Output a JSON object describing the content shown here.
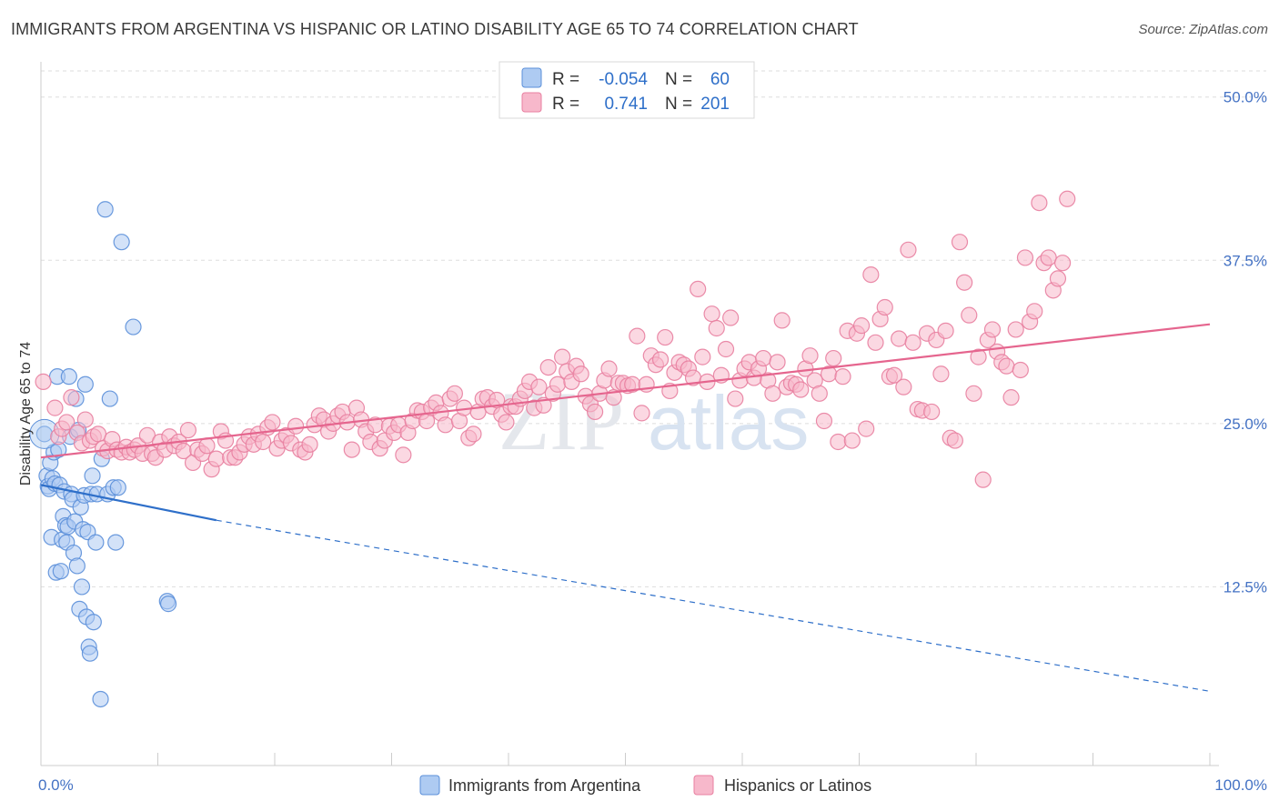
{
  "title": "IMMIGRANTS FROM ARGENTINA VS HISPANIC OR LATINO DISABILITY AGE 65 TO 74 CORRELATION CHART",
  "source": "Source: ZipAtlas.com",
  "watermark": {
    "zip": "ZIP",
    "atlas": "atlas"
  },
  "legend_top": [
    {
      "r_label": "R =",
      "r_value": "-0.054",
      "n_label": "N =",
      "n_value": "60",
      "swatch_fill": "#aecbf2",
      "swatch_stroke": "#5b8fd9"
    },
    {
      "r_label": "R =",
      "r_value": "0.741",
      "n_label": "N =",
      "n_value": "201",
      "swatch_fill": "#f7b8cb",
      "swatch_stroke": "#e87fa0"
    }
  ],
  "chart_data": {
    "type": "scatter",
    "title": "IMMIGRANTS FROM ARGENTINA VS HISPANIC OR LATINO DISABILITY AGE 65 TO 74 CORRELATION CHART",
    "xlabel": "",
    "ylabel": "Disability Age 65 to 74",
    "xlim": [
      0,
      100
    ],
    "ylim": [
      0,
      52
    ],
    "x_tick_labels": [
      "0.0%",
      "100.0%"
    ],
    "y_ticks": [
      {
        "value": 12.5,
        "label": "12.5%"
      },
      {
        "value": 25.0,
        "label": "25.0%"
      },
      {
        "value": 37.5,
        "label": "37.5%"
      },
      {
        "value": 50.0,
        "label": "50.0%"
      }
    ],
    "grid": true,
    "legend_position": "top-center",
    "series": [
      {
        "name": "Immigrants from Argentina",
        "color": "#5b8fd9",
        "fill": "#aecbf2",
        "trend": {
          "x0": 0,
          "y0": 20.3,
          "x1": 15,
          "y1": 17.6,
          "dashed_to_x": 100,
          "dashed_to_y": 4.5,
          "color": "#2e6fc9"
        },
        "points": [
          [
            0.3,
            24.2
          ],
          [
            0.5,
            21.0
          ],
          [
            0.6,
            20.2
          ],
          [
            0.7,
            20.0
          ],
          [
            0.8,
            22.0
          ],
          [
            0.9,
            16.3
          ],
          [
            1.0,
            20.8
          ],
          [
            1.1,
            22.8
          ],
          [
            1.2,
            20.4
          ],
          [
            1.3,
            13.6
          ],
          [
            1.4,
            28.6
          ],
          [
            1.5,
            23.0
          ],
          [
            1.6,
            20.3
          ],
          [
            1.7,
            13.7
          ],
          [
            1.8,
            16.1
          ],
          [
            1.9,
            17.9
          ],
          [
            2.0,
            19.8
          ],
          [
            2.1,
            17.2
          ],
          [
            2.2,
            15.9
          ],
          [
            2.3,
            17.1
          ],
          [
            2.4,
            28.6
          ],
          [
            2.5,
            24.0
          ],
          [
            2.6,
            19.6
          ],
          [
            2.7,
            19.2
          ],
          [
            2.8,
            15.1
          ],
          [
            2.9,
            17.5
          ],
          [
            3.0,
            26.9
          ],
          [
            3.1,
            14.1
          ],
          [
            3.2,
            24.5
          ],
          [
            3.3,
            10.8
          ],
          [
            3.4,
            18.6
          ],
          [
            3.5,
            12.5
          ],
          [
            3.6,
            16.9
          ],
          [
            3.7,
            19.5
          ],
          [
            3.8,
            28.0
          ],
          [
            3.9,
            10.2
          ],
          [
            4.0,
            16.7
          ],
          [
            4.1,
            7.9
          ],
          [
            4.2,
            7.4
          ],
          [
            4.3,
            19.6
          ],
          [
            4.4,
            21.0
          ],
          [
            4.5,
            9.8
          ],
          [
            4.7,
            15.9
          ],
          [
            4.8,
            19.6
          ],
          [
            5.1,
            3.9
          ],
          [
            5.2,
            22.3
          ],
          [
            5.5,
            41.4
          ],
          [
            5.7,
            19.6
          ],
          [
            5.9,
            26.9
          ],
          [
            6.2,
            20.1
          ],
          [
            6.4,
            15.9
          ],
          [
            6.6,
            20.1
          ],
          [
            6.9,
            38.9
          ],
          [
            7.9,
            32.4
          ],
          [
            10.8,
            11.4
          ],
          [
            10.9,
            11.2
          ]
        ]
      },
      {
        "name": "Hispanics or Latinos",
        "color": "#e87fa0",
        "fill": "#f7b8cb",
        "trend": {
          "x0": 0,
          "y0": 22.4,
          "x1": 100,
          "y1": 32.6,
          "color": "#e5658e"
        },
        "points": [
          [
            0.2,
            28.2
          ],
          [
            1.2,
            26.2
          ],
          [
            1.5,
            24.0
          ],
          [
            1.8,
            24.6
          ],
          [
            2.2,
            25.1
          ],
          [
            2.6,
            27.0
          ],
          [
            3.1,
            24.3
          ],
          [
            3.5,
            23.5
          ],
          [
            3.8,
            25.3
          ],
          [
            4.2,
            23.7
          ],
          [
            4.5,
            24.0
          ],
          [
            4.9,
            24.2
          ],
          [
            5.3,
            23.1
          ],
          [
            5.7,
            22.9
          ],
          [
            6.1,
            23.8
          ],
          [
            6.5,
            23.0
          ],
          [
            6.9,
            22.8
          ],
          [
            7.3,
            23.2
          ],
          [
            7.6,
            22.8
          ],
          [
            8.0,
            23.0
          ],
          [
            8.3,
            23.3
          ],
          [
            8.7,
            22.7
          ],
          [
            9.1,
            24.1
          ],
          [
            9.5,
            22.7
          ],
          [
            9.8,
            22.4
          ],
          [
            10.2,
            23.6
          ],
          [
            10.6,
            23.0
          ],
          [
            11.0,
            24.0
          ],
          [
            11.4,
            23.3
          ],
          [
            11.8,
            23.6
          ],
          [
            12.2,
            22.9
          ],
          [
            12.6,
            24.5
          ],
          [
            13.0,
            22.0
          ],
          [
            13.4,
            23.0
          ],
          [
            13.8,
            22.7
          ],
          [
            14.2,
            23.3
          ],
          [
            14.6,
            21.5
          ],
          [
            15.0,
            22.3
          ],
          [
            15.4,
            24.4
          ],
          [
            15.8,
            23.7
          ],
          [
            16.2,
            22.4
          ],
          [
            16.6,
            22.4
          ],
          [
            17.0,
            22.8
          ],
          [
            17.4,
            23.4
          ],
          [
            17.8,
            24.0
          ],
          [
            18.2,
            23.4
          ],
          [
            18.6,
            24.2
          ],
          [
            19.0,
            23.6
          ],
          [
            19.4,
            24.7
          ],
          [
            19.8,
            25.1
          ],
          [
            20.2,
            23.1
          ],
          [
            20.6,
            23.7
          ],
          [
            21.0,
            24.1
          ],
          [
            21.4,
            23.5
          ],
          [
            21.8,
            24.8
          ],
          [
            22.2,
            23.0
          ],
          [
            22.6,
            22.8
          ],
          [
            23.0,
            23.4
          ],
          [
            23.4,
            24.9
          ],
          [
            23.8,
            25.6
          ],
          [
            24.2,
            25.3
          ],
          [
            24.6,
            24.4
          ],
          [
            25.0,
            25.0
          ],
          [
            25.4,
            25.6
          ],
          [
            25.8,
            25.9
          ],
          [
            26.2,
            25.1
          ],
          [
            26.6,
            23.0
          ],
          [
            27.0,
            26.2
          ],
          [
            27.4,
            25.3
          ],
          [
            27.8,
            24.4
          ],
          [
            28.2,
            23.6
          ],
          [
            28.6,
            24.9
          ],
          [
            29.0,
            23.1
          ],
          [
            29.4,
            23.7
          ],
          [
            29.8,
            24.8
          ],
          [
            30.2,
            24.3
          ],
          [
            30.6,
            24.9
          ],
          [
            31.0,
            22.6
          ],
          [
            31.4,
            24.3
          ],
          [
            31.8,
            25.2
          ],
          [
            32.2,
            26.0
          ],
          [
            32.6,
            25.9
          ],
          [
            33.0,
            25.2
          ],
          [
            33.4,
            26.2
          ],
          [
            33.8,
            26.6
          ],
          [
            34.2,
            25.8
          ],
          [
            34.6,
            24.9
          ],
          [
            35.0,
            26.9
          ],
          [
            35.4,
            27.3
          ],
          [
            35.8,
            25.2
          ],
          [
            36.2,
            26.2
          ],
          [
            36.6,
            23.9
          ],
          [
            37.0,
            24.2
          ],
          [
            37.4,
            25.9
          ],
          [
            37.8,
            26.9
          ],
          [
            38.2,
            27.0
          ],
          [
            38.6,
            26.3
          ],
          [
            39.0,
            26.8
          ],
          [
            39.4,
            25.7
          ],
          [
            39.8,
            25.1
          ],
          [
            40.2,
            26.3
          ],
          [
            40.6,
            26.3
          ],
          [
            41.0,
            26.9
          ],
          [
            41.4,
            27.5
          ],
          [
            41.8,
            28.2
          ],
          [
            42.2,
            26.2
          ],
          [
            42.6,
            27.8
          ],
          [
            43.0,
            26.4
          ],
          [
            43.4,
            29.3
          ],
          [
            43.8,
            27.3
          ],
          [
            44.2,
            28.0
          ],
          [
            44.6,
            30.1
          ],
          [
            45.0,
            29.0
          ],
          [
            45.4,
            28.2
          ],
          [
            45.8,
            29.4
          ],
          [
            46.2,
            28.8
          ],
          [
            46.6,
            27.1
          ],
          [
            47.0,
            26.5
          ],
          [
            47.4,
            25.9
          ],
          [
            47.8,
            27.3
          ],
          [
            48.2,
            28.3
          ],
          [
            48.6,
            29.2
          ],
          [
            49.0,
            27.0
          ],
          [
            49.4,
            28.1
          ],
          [
            49.8,
            28.1
          ],
          [
            50.2,
            27.9
          ],
          [
            50.6,
            28.0
          ],
          [
            51.0,
            31.7
          ],
          [
            51.4,
            25.8
          ],
          [
            51.8,
            28.0
          ],
          [
            52.2,
            30.2
          ],
          [
            52.6,
            29.5
          ],
          [
            53.0,
            29.9
          ],
          [
            53.4,
            31.6
          ],
          [
            53.8,
            27.5
          ],
          [
            54.2,
            28.9
          ],
          [
            54.6,
            29.7
          ],
          [
            55.0,
            29.5
          ],
          [
            55.4,
            29.2
          ],
          [
            55.8,
            28.5
          ],
          [
            56.2,
            35.3
          ],
          [
            56.6,
            30.1
          ],
          [
            57.0,
            28.2
          ],
          [
            57.4,
            33.4
          ],
          [
            57.8,
            32.3
          ],
          [
            58.2,
            28.7
          ],
          [
            58.6,
            30.7
          ],
          [
            59.0,
            33.1
          ],
          [
            59.4,
            26.9
          ],
          [
            59.8,
            28.3
          ],
          [
            60.2,
            29.2
          ],
          [
            60.6,
            29.7
          ],
          [
            61.0,
            28.5
          ],
          [
            61.4,
            29.2
          ],
          [
            61.8,
            30.0
          ],
          [
            62.2,
            28.3
          ],
          [
            62.6,
            27.3
          ],
          [
            63.0,
            29.7
          ],
          [
            63.4,
            32.9
          ],
          [
            63.8,
            27.8
          ],
          [
            64.2,
            28.1
          ],
          [
            64.6,
            28.0
          ],
          [
            65.0,
            27.6
          ],
          [
            65.4,
            29.2
          ],
          [
            65.8,
            30.2
          ],
          [
            66.2,
            28.3
          ],
          [
            66.6,
            27.3
          ],
          [
            67.0,
            25.2
          ],
          [
            67.4,
            28.8
          ],
          [
            67.8,
            30.0
          ],
          [
            68.2,
            23.6
          ],
          [
            68.6,
            28.6
          ],
          [
            69.0,
            32.1
          ],
          [
            69.4,
            23.7
          ],
          [
            69.8,
            31.9
          ],
          [
            70.2,
            32.5
          ],
          [
            70.6,
            24.6
          ],
          [
            71.0,
            36.4
          ],
          [
            71.4,
            31.2
          ],
          [
            71.8,
            33.0
          ],
          [
            72.2,
            33.9
          ],
          [
            72.6,
            28.6
          ],
          [
            73.0,
            28.7
          ],
          [
            73.4,
            31.5
          ],
          [
            73.8,
            27.8
          ],
          [
            74.2,
            38.3
          ],
          [
            74.6,
            31.2
          ],
          [
            75.0,
            26.1
          ],
          [
            75.4,
            26.0
          ],
          [
            75.8,
            31.9
          ],
          [
            76.2,
            25.9
          ],
          [
            76.6,
            31.4
          ],
          [
            77.0,
            28.8
          ],
          [
            77.4,
            32.1
          ],
          [
            77.8,
            23.9
          ],
          [
            78.2,
            23.7
          ],
          [
            78.6,
            38.9
          ],
          [
            79.0,
            35.8
          ],
          [
            79.4,
            33.3
          ],
          [
            79.8,
            27.3
          ],
          [
            80.2,
            30.1
          ],
          [
            80.6,
            20.7
          ],
          [
            81.0,
            31.4
          ],
          [
            81.4,
            32.2
          ],
          [
            81.8,
            30.5
          ],
          [
            82.2,
            29.7
          ],
          [
            82.6,
            29.4
          ],
          [
            83.0,
            27.0
          ],
          [
            83.4,
            32.2
          ],
          [
            83.8,
            29.1
          ],
          [
            84.2,
            37.7
          ],
          [
            84.6,
            32.8
          ],
          [
            85.0,
            33.6
          ],
          [
            85.4,
            41.9
          ],
          [
            85.8,
            37.3
          ],
          [
            86.2,
            37.7
          ],
          [
            86.6,
            35.2
          ],
          [
            87.0,
            36.1
          ],
          [
            87.4,
            37.3
          ],
          [
            87.8,
            42.2
          ]
        ]
      }
    ]
  },
  "bottom_legend": [
    {
      "label": "Immigrants from Argentina",
      "swatch_fill": "#aecbf2",
      "swatch_stroke": "#5b8fd9"
    },
    {
      "label": "Hispanics or Latinos",
      "swatch_fill": "#f7b8cb",
      "swatch_stroke": "#e87fa0"
    }
  ]
}
